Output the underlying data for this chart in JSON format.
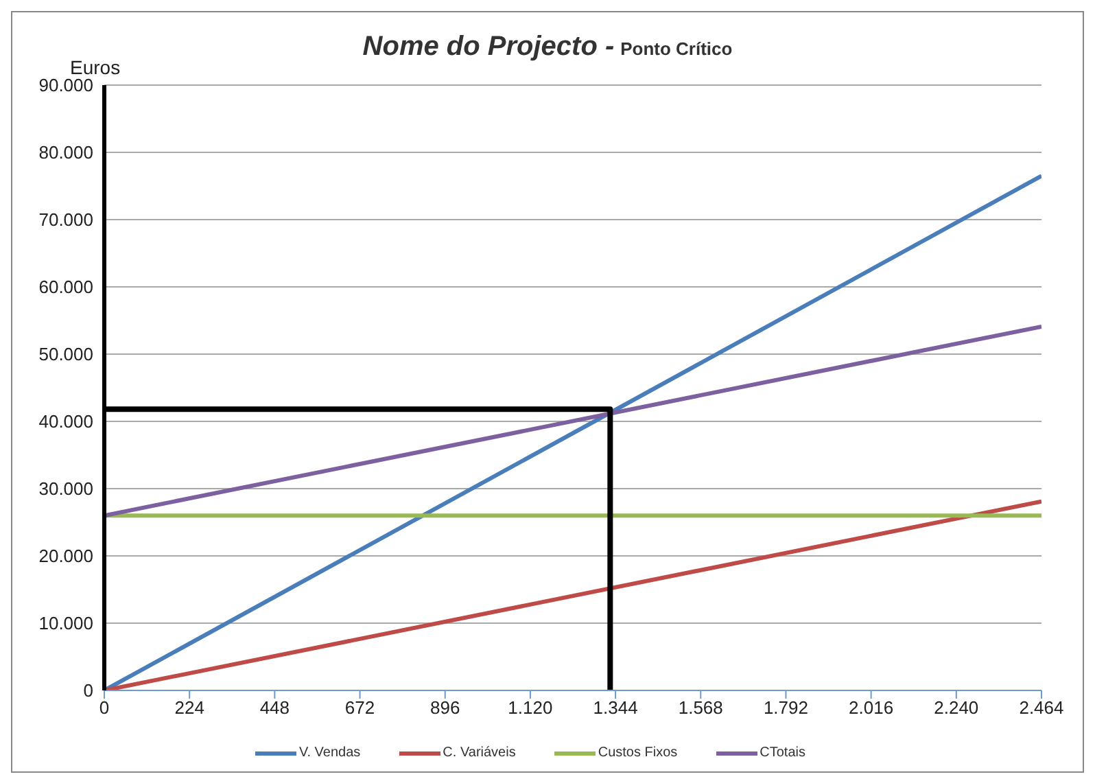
{
  "chart_data": {
    "type": "line",
    "title": "Nome do Projecto -",
    "subtitle": "Ponto Crítico",
    "ylabel": "Euros",
    "xlim": [
      0,
      2464
    ],
    "xticks": [
      0,
      224,
      448,
      672,
      896,
      {
        "value": 1120,
        "label": "1.120"
      },
      {
        "value": 1344,
        "label": "1.344"
      },
      {
        "value": 1568,
        "label": "1.568"
      },
      {
        "value": 1792,
        "label": "1.792"
      },
      {
        "value": 2016,
        "label": "2.016"
      },
      {
        "value": 2240,
        "label": "2.240"
      },
      {
        "value": 2464,
        "label": "2.464"
      }
    ],
    "ylim": [
      0,
      90000
    ],
    "yticks": [
      0,
      {
        "value": 10000,
        "label": "10.000"
      },
      {
        "value": 20000,
        "label": "20.000"
      },
      {
        "value": 30000,
        "label": "30.000"
      },
      {
        "value": 40000,
        "label": "40.000"
      },
      {
        "value": 50000,
        "label": "50.000"
      },
      {
        "value": 60000,
        "label": "60.000"
      },
      {
        "value": 70000,
        "label": "70.000"
      },
      {
        "value": 80000,
        "label": "80.000"
      },
      {
        "value": 90000,
        "label": "90.000"
      }
    ],
    "grid": "y",
    "legend": "bottom",
    "marker": "none",
    "line_style": "solid",
    "series": [
      {
        "name": "V. Vendas",
        "color": "#4a7ebb",
        "x": [
          0,
          2464
        ],
        "values": [
          0,
          76500
        ]
      },
      {
        "name": "C. Variáveis",
        "color": "#be4b48",
        "x": [
          0,
          2464
        ],
        "values": [
          0,
          28100
        ]
      },
      {
        "name": "Custos Fixos",
        "color": "#98b954",
        "x": [
          0,
          2464
        ],
        "values": [
          26000,
          26000
        ]
      },
      {
        "name": "CTotais",
        "color": "#7d60a0",
        "x": [
          0,
          2464
        ],
        "values": [
          26000,
          54100
        ]
      },
      {
        "color": "#000000",
        "x": [
          0,
          1330,
          1330
        ],
        "values": [
          41800,
          41800,
          0
        ]
      }
    ]
  }
}
